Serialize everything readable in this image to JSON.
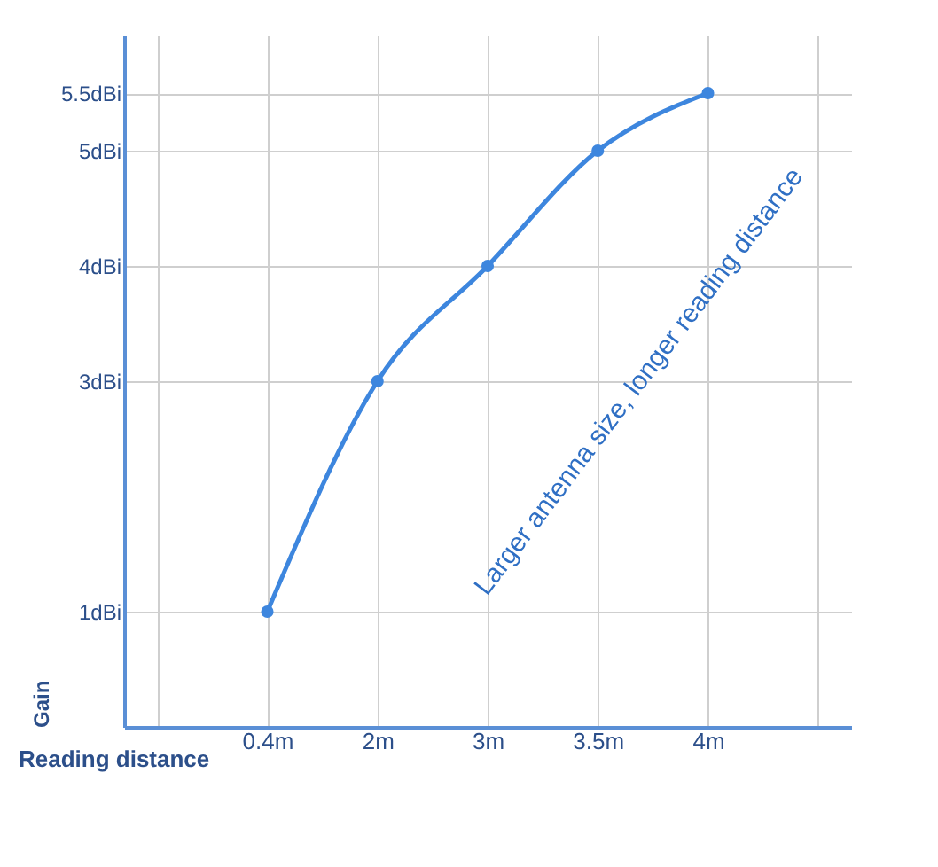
{
  "chart_data": {
    "type": "line",
    "xlabel": "Reading distance",
    "ylabel": "Gain",
    "categories": [
      null,
      "0.4m",
      "2m",
      "3m",
      "3.5m",
      "4m",
      null
    ],
    "series": [
      {
        "color": "#3d86de",
        "values": [
          null,
          1,
          3,
          4,
          5,
          5.5,
          null
        ]
      }
    ],
    "ylim": [
      0,
      6
    ],
    "yticks": [
      {
        "value": 1,
        "label": "1dBi"
      },
      {
        "value": 3,
        "label": "3dBi"
      },
      {
        "value": 4,
        "label": "4dBi"
      },
      {
        "value": 5,
        "label": "5dBi"
      },
      {
        "value": 5.5,
        "label": "5.5dBi"
      }
    ],
    "grid": true,
    "marker": "circle",
    "line_style": "solid",
    "annotations": [
      "Larger antenna size, longer reading distance"
    ]
  }
}
